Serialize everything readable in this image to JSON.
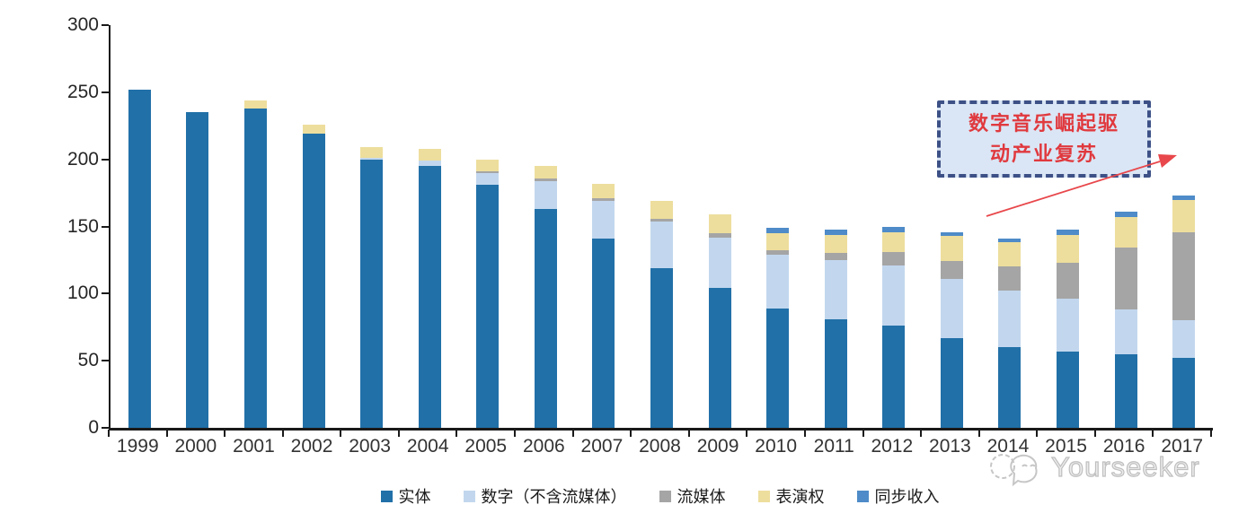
{
  "chart_data": {
    "type": "bar",
    "stacked": true,
    "title": "",
    "xlabel": "",
    "ylabel": "",
    "categories": [
      "1999",
      "2000",
      "2001",
      "2002",
      "2003",
      "2004",
      "2005",
      "2006",
      "2007",
      "2008",
      "2009",
      "2010",
      "2011",
      "2012",
      "2013",
      "2014",
      "2015",
      "2016",
      "2017"
    ],
    "series": [
      {
        "name": "实体",
        "color": "#2170A8",
        "values": [
          252,
          235,
          238,
          219,
          200,
          195,
          181,
          163,
          141,
          119,
          104,
          89,
          81,
          76,
          67,
          60,
          57,
          55,
          52
        ]
      },
      {
        "name": "数字（不含流媒体）",
        "color": "#C2D7EE",
        "values": [
          0,
          0,
          0,
          0,
          1,
          4,
          9,
          21,
          28,
          35,
          38,
          40,
          44,
          45,
          44,
          42,
          39,
          33,
          28
        ]
      },
      {
        "name": "流媒体",
        "color": "#A5A5A5",
        "values": [
          0,
          0,
          0,
          0,
          0,
          0,
          1,
          2,
          2,
          2,
          3,
          3,
          5,
          10,
          13,
          18,
          27,
          46,
          66
        ]
      },
      {
        "name": "表演权",
        "color": "#EDDE9D",
        "values": [
          0,
          0,
          6,
          7,
          8,
          9,
          9,
          9,
          11,
          13,
          14,
          13,
          14,
          15,
          19,
          18,
          21,
          23,
          24
        ]
      },
      {
        "name": "同步收入",
        "color": "#4E8BC8",
        "values": [
          0,
          0,
          0,
          0,
          0,
          0,
          0,
          0,
          0,
          0,
          0,
          4,
          4,
          4,
          3,
          3,
          4,
          4,
          3
        ]
      }
    ],
    "ylim": [
      0,
      300
    ],
    "yticks": [
      0,
      50,
      100,
      150,
      200,
      250,
      300
    ],
    "grid": false,
    "legend_position": "bottom"
  },
  "annotation": {
    "line1": "数字音乐崛起驱",
    "line2": "动产业复苏",
    "text_color": "#E0393E",
    "border_color": "#3D5187",
    "fill_color": "#DAE6F5",
    "arrow_color": "#E8474B"
  },
  "watermark": {
    "text": "Yourseeker"
  },
  "axis": {
    "line_color": "#1a1a1a",
    "label_color": "#262626"
  }
}
